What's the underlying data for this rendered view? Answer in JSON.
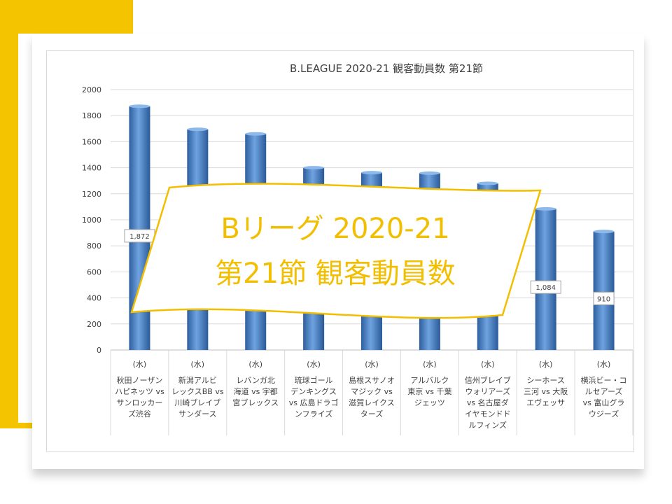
{
  "chart_data": {
    "type": "bar",
    "title": "B.LEAGUE 2020-21 観客動員数 第21節",
    "xlabel": "",
    "ylabel": "",
    "ylim": [
      0,
      2000
    ],
    "yticks": [
      0,
      200,
      400,
      600,
      800,
      1000,
      1200,
      1400,
      1600,
      1800,
      2000
    ],
    "grid": true,
    "legend": "none",
    "bar_color": "#3E78C2",
    "weekday": "(水)",
    "categories": [
      "秋田ノーザンハピネッツ vs サンロッカーズ渋谷",
      "新潟アルビレックスBB vs 川崎ブレイブサンダース",
      "レバンガ北海道 vs 宇都宮ブレックス",
      "琉球ゴールデンキングス vs 広島ドラゴンフライズ",
      "島根スサノオマジック vs 滋賀レイクスターズ",
      "アルバルク東京 vs 千葉ジェッツ",
      "信州ブレイブウォリアーズ vs 名古屋ダイヤモンドドルフィンズ",
      "シーホース三河 vs 大阪エヴェッサ",
      "横浜ビー・コルセアーズ vs 富山グラウジーズ"
    ],
    "category_lines": [
      [
        "秋田ノーザン",
        "ハピネッツ vs",
        "サンロッカー",
        "ズ渋谷"
      ],
      [
        "新潟アルビ",
        "レックスBB vs",
        "川崎ブレイブ",
        "サンダース"
      ],
      [
        "レバンガ北",
        "海道 vs 宇都",
        "宮ブレックス"
      ],
      [
        "琉球ゴール",
        "デンキングス",
        "vs 広島ドラゴ",
        "ンフライズ"
      ],
      [
        "島根スサノオ",
        "マジック vs",
        "滋賀レイクス",
        "ターズ"
      ],
      [
        "アルバルク",
        "東京 vs 千葉",
        "ジェッツ"
      ],
      [
        "信州ブレイブ",
        "ウォリアーズ",
        "vs 名古屋ダ",
        "イヤモンドド",
        "ルフィンズ"
      ],
      [
        "シーホース",
        "三河 vs 大阪",
        "エヴェッサ"
      ],
      [
        "横浜ビー・コ",
        "ルセアーズ",
        "vs 富山グラ",
        "ウジーズ"
      ]
    ],
    "values": [
      1872,
      1695,
      1660,
      1400,
      1362,
      1358,
      1280,
      1084,
      910
    ],
    "data_labels": [
      {
        "index": 0,
        "text": "1,872"
      },
      {
        "index": 7,
        "text": "1,084"
      },
      {
        "index": 8,
        "text": "910"
      }
    ]
  },
  "banner": {
    "line1": "Bリーグ 2020-21",
    "line2": "第21節 観客動員数",
    "text_color": "#F2BE00",
    "border_color": "#F2BE00"
  }
}
